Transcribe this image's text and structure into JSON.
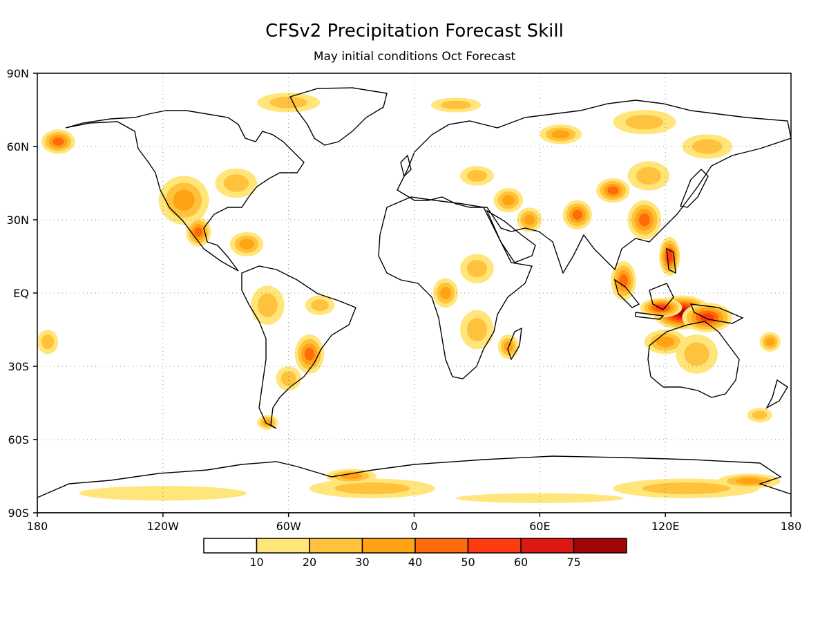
{
  "title": "CFSv2 Precipitation Forecast Skill",
  "subtitle": "May initial conditions  Oct Forecast",
  "axes": {
    "lat_labels": [
      "90N",
      "60N",
      "30N",
      "EQ",
      "30S",
      "60S",
      "90S"
    ],
    "lat_values": [
      90,
      60,
      30,
      0,
      -30,
      -60,
      -90
    ],
    "lon_labels": [
      "180",
      "120W",
      "60W",
      "0",
      "60E",
      "120E",
      "180"
    ],
    "lon_values": [
      -180,
      -120,
      -60,
      0,
      60,
      120,
      180
    ],
    "grid": true
  },
  "colorbar": {
    "thresholds": [
      "10",
      "20",
      "30",
      "40",
      "50",
      "60",
      "75"
    ],
    "colors": [
      "#ffffff",
      "#ffe57a",
      "#ffc23c",
      "#ffa213",
      "#ff6a0c",
      "#ff3b10",
      "#dd1812",
      "#a00808"
    ]
  },
  "skill_regions": [
    {
      "lon": 128,
      "lat": -8,
      "rx": 14,
      "ry": 7,
      "level": 7
    },
    {
      "lon": 118,
      "lat": -6,
      "rx": 10,
      "ry": 4,
      "level": 5
    },
    {
      "lon": 140,
      "lat": -10,
      "rx": 12,
      "ry": 6,
      "level": 5
    },
    {
      "lon": 122,
      "lat": 15,
      "rx": 5,
      "ry": 8,
      "level": 5
    },
    {
      "lon": 110,
      "lat": 30,
      "rx": 8,
      "ry": 8,
      "level": 4
    },
    {
      "lon": 95,
      "lat": 42,
      "rx": 8,
      "ry": 5,
      "level": 4
    },
    {
      "lon": 78,
      "lat": 32,
      "rx": 7,
      "ry": 6,
      "level": 4
    },
    {
      "lon": 100,
      "lat": 5,
      "rx": 6,
      "ry": 8,
      "level": 4
    },
    {
      "lon": 112,
      "lat": 48,
      "rx": 10,
      "ry": 6,
      "level": 2
    },
    {
      "lon": 120,
      "lat": -20,
      "rx": 10,
      "ry": 5,
      "level": 3
    },
    {
      "lon": 135,
      "lat": -25,
      "rx": 10,
      "ry": 8,
      "level": 2
    },
    {
      "lon": 45,
      "lat": 38,
      "rx": 7,
      "ry": 5,
      "level": 3
    },
    {
      "lon": 55,
      "lat": 30,
      "rx": 6,
      "ry": 5,
      "level": 3
    },
    {
      "lon": 30,
      "lat": 10,
      "rx": 8,
      "ry": 6,
      "level": 2
    },
    {
      "lon": 15,
      "lat": 0,
      "rx": 6,
      "ry": 6,
      "level": 3
    },
    {
      "lon": 30,
      "lat": -15,
      "rx": 8,
      "ry": 8,
      "level": 2
    },
    {
      "lon": 45,
      "lat": -22,
      "rx": 5,
      "ry": 5,
      "level": 3
    },
    {
      "lon": 30,
      "lat": 48,
      "rx": 8,
      "ry": 4,
      "level": 2
    },
    {
      "lon": 70,
      "lat": 65,
      "rx": 10,
      "ry": 4,
      "level": 3
    },
    {
      "lon": 110,
      "lat": 70,
      "rx": 15,
      "ry": 5,
      "level": 2
    },
    {
      "lon": 140,
      "lat": 60,
      "rx": 12,
      "ry": 5,
      "level": 2
    },
    {
      "lon": -110,
      "lat": 38,
      "rx": 12,
      "ry": 10,
      "level": 3
    },
    {
      "lon": -103,
      "lat": 25,
      "rx": 6,
      "ry": 6,
      "level": 4
    },
    {
      "lon": -85,
      "lat": 45,
      "rx": 10,
      "ry": 6,
      "level": 2
    },
    {
      "lon": -170,
      "lat": 62,
      "rx": 8,
      "ry": 5,
      "level": 4
    },
    {
      "lon": -80,
      "lat": 20,
      "rx": 8,
      "ry": 5,
      "level": 3
    },
    {
      "lon": -70,
      "lat": -5,
      "rx": 8,
      "ry": 8,
      "level": 2
    },
    {
      "lon": -50,
      "lat": -25,
      "rx": 7,
      "ry": 8,
      "level": 4
    },
    {
      "lon": -60,
      "lat": -35,
      "rx": 6,
      "ry": 5,
      "level": 2
    },
    {
      "lon": -70,
      "lat": -53,
      "rx": 5,
      "ry": 3,
      "level": 3
    },
    {
      "lon": -45,
      "lat": -5,
      "rx": 7,
      "ry": 4,
      "level": 2
    },
    {
      "lon": -175,
      "lat": -20,
      "rx": 5,
      "ry": 5,
      "level": 2
    },
    {
      "lon": 170,
      "lat": -20,
      "rx": 5,
      "ry": 4,
      "level": 3
    },
    {
      "lon": 165,
      "lat": -50,
      "rx": 6,
      "ry": 3,
      "level": 2
    },
    {
      "lon": -60,
      "lat": 78,
      "rx": 15,
      "ry": 4,
      "level": 2
    },
    {
      "lon": 20,
      "lat": 77,
      "rx": 12,
      "ry": 3,
      "level": 2
    },
    {
      "lon": -120,
      "lat": -82,
      "rx": 40,
      "ry": 3,
      "level": 1
    },
    {
      "lon": -20,
      "lat": -80,
      "rx": 30,
      "ry": 4,
      "level": 2
    },
    {
      "lon": -30,
      "lat": -75,
      "rx": 12,
      "ry": 3,
      "level": 3
    },
    {
      "lon": 60,
      "lat": -84,
      "rx": 40,
      "ry": 2,
      "level": 1
    },
    {
      "lon": 130,
      "lat": -80,
      "rx": 35,
      "ry": 4,
      "level": 2
    },
    {
      "lon": 160,
      "lat": -77,
      "rx": 15,
      "ry": 3,
      "level": 3
    }
  ]
}
